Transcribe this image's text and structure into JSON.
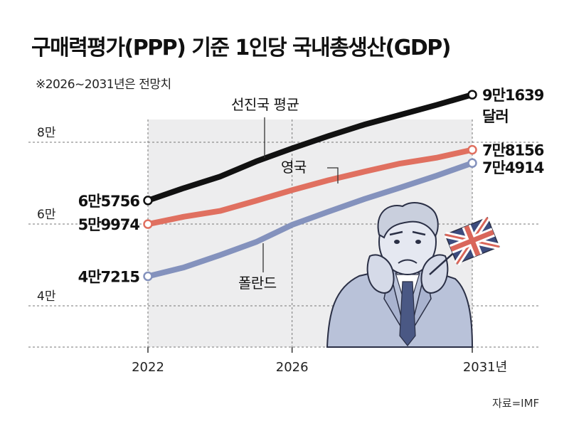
{
  "title": "구매력평가(PPP) 기준 1인당 국내총생산(GDP)",
  "note": "※2026~2031년은 전망치",
  "source": "자료=IMF",
  "colors": {
    "advanced": "#111111",
    "uk": "#e07060",
    "poland": "#8492bd",
    "plot_bg": "#ededee",
    "grid": "#777777"
  },
  "chart_data": {
    "type": "line",
    "title": "구매력평가(PPP) 기준 1인당 국내총생산(GDP)",
    "xlabel": "",
    "ylabel": "",
    "x": [
      2022,
      2023,
      2024,
      2025,
      2026,
      2027,
      2028,
      2029,
      2030,
      2031
    ],
    "x_ticks": [
      {
        "value": 2022,
        "label": "2022"
      },
      {
        "value": 2026,
        "label": "2026"
      },
      {
        "value": 2031,
        "label": "2031년"
      }
    ],
    "y_ticks": [
      {
        "value": 40000,
        "label": "4만"
      },
      {
        "value": 60000,
        "label": "6만"
      },
      {
        "value": 80000,
        "label": "8만"
      }
    ],
    "ylim": [
      30000,
      100000
    ],
    "grid": true,
    "series": [
      {
        "name": "선진국 평균",
        "color": "#111111",
        "values": [
          65756,
          68800,
          71600,
          75300,
          78500,
          81500,
          84300,
          86700,
          89100,
          91639
        ],
        "start_label": "6만5756",
        "end_label": [
          "9만1639",
          "달러"
        ]
      },
      {
        "name": "영국",
        "color": "#e07060",
        "values": [
          59974,
          61800,
          63200,
          65700,
          68300,
          70700,
          72800,
          74800,
          76200,
          78156
        ],
        "start_label": "5만9974",
        "end_label": [
          "7만8156"
        ]
      },
      {
        "name": "폴란드",
        "color": "#8492bd",
        "values": [
          47215,
          49400,
          52400,
          55600,
          59800,
          63000,
          66100,
          68900,
          71800,
          74914
        ],
        "start_label": "4만7215",
        "end_label": [
          "7만4914"
        ]
      }
    ]
  }
}
